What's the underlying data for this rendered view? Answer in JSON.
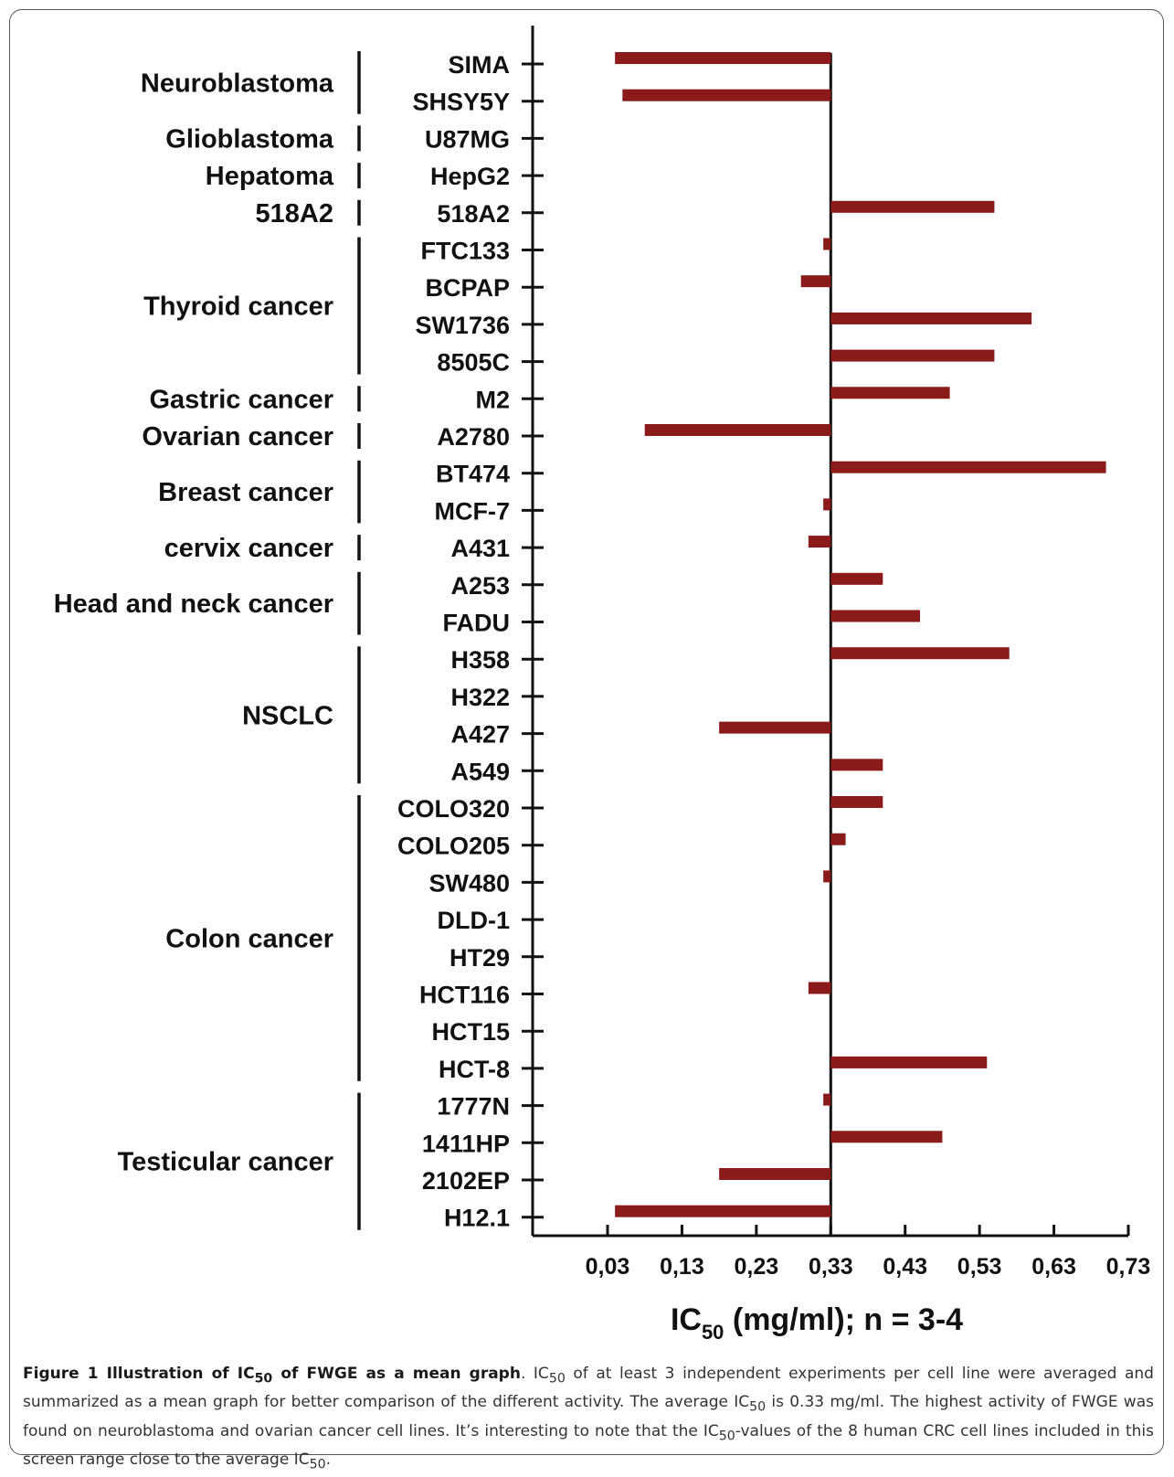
{
  "chart_data": {
    "type": "bar",
    "orientation": "horizontal",
    "reference_value": 0.33,
    "xlim": [
      0.03,
      0.73
    ],
    "x_ticks": [
      "0,03",
      "0,13",
      "0,23",
      "0,33",
      "0,43",
      "0,53",
      "0,63",
      "0,73"
    ],
    "xlabel_main": "IC",
    "xlabel_sub": "50",
    "xlabel_rest": " (mg/ml); n = 3-4",
    "bar_color": "#8b1a1a",
    "categories": [
      "SIMA",
      "SHSY5Y",
      "U87MG",
      "HepG2",
      "518A2",
      "FTC133",
      "BCPAP",
      "SW1736",
      "8505C",
      "M2",
      "A2780",
      "BT474",
      "MCF-7",
      "A431",
      "A253",
      "FADU",
      "H358",
      "H322",
      "A427",
      "A549",
      "COLO320",
      "COLO205",
      "SW480",
      "DLD-1",
      "HT29",
      "HCT116",
      "HCT15",
      "HCT-8",
      "1777N",
      "1411HP",
      "2102EP",
      "H12.1"
    ],
    "values": [
      0.04,
      0.05,
      0.33,
      0.33,
      0.55,
      0.32,
      0.29,
      0.6,
      0.55,
      0.49,
      0.08,
      0.7,
      0.32,
      0.3,
      0.4,
      0.45,
      0.57,
      0.33,
      0.18,
      0.4,
      0.4,
      0.35,
      0.32,
      0.33,
      0.33,
      0.3,
      0.33,
      0.54,
      0.32,
      0.48,
      0.18,
      0.04
    ],
    "groups": [
      {
        "name": "Neuroblastoma",
        "start": 0,
        "end": 1
      },
      {
        "name": "Glioblastoma",
        "start": 2,
        "end": 2
      },
      {
        "name": "Hepatoma",
        "start": 3,
        "end": 3
      },
      {
        "name": "518A2",
        "start": 4,
        "end": 4
      },
      {
        "name": "Thyroid cancer",
        "start": 5,
        "end": 8
      },
      {
        "name": "Gastric cancer",
        "start": 9,
        "end": 9
      },
      {
        "name": "Ovarian cancer",
        "start": 10,
        "end": 10
      },
      {
        "name": "Breast cancer",
        "start": 11,
        "end": 12
      },
      {
        "name": "cervix cancer",
        "start": 13,
        "end": 13
      },
      {
        "name": "Head and neck cancer",
        "start": 14,
        "end": 15
      },
      {
        "name": "NSCLC",
        "start": 16,
        "end": 19
      },
      {
        "name": "Colon cancer",
        "start": 20,
        "end": 27
      },
      {
        "name": "Testicular cancer",
        "start": 28,
        "end": 31
      }
    ]
  },
  "caption": {
    "title_a": "Figure 1 Illustration of IC",
    "title_sub": "50",
    "title_b": " of FWGE as a mean graph",
    "s1": ". IC",
    "s1_sub": "50",
    "s2": " of at least 3 independent experiments per cell line were averaged and summarized as a mean graph for better comparison of the different activity. The average IC",
    "s2_sub": "50",
    "s3": " is 0.33 mg/ml. The highest activity of FWGE was found on neuroblastoma and ovarian cancer cell lines. It’s interesting to note that the IC",
    "s3_sub": "50",
    "s4": "-values of the 8 human CRC cell lines included in this screen range close to the average IC",
    "s4_sub": "50",
    "s5": "."
  }
}
